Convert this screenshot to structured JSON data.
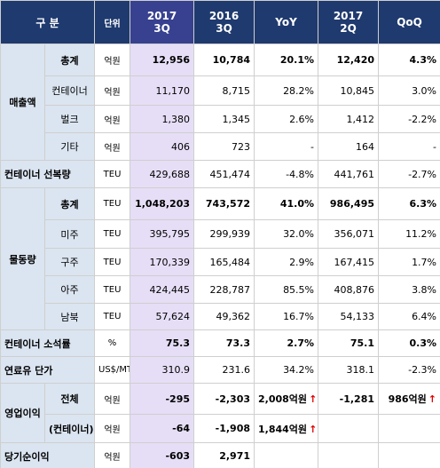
{
  "header": {
    "category": "구 분",
    "unit": "단위",
    "columns": [
      [
        "2017",
        "3Q"
      ],
      [
        "2016",
        "3Q"
      ],
      [
        "YoY"
      ],
      [
        "2017",
        "2Q"
      ],
      [
        "QoQ"
      ]
    ]
  },
  "sections": [
    {
      "label": "매출액",
      "rows": [
        {
          "item": "총계",
          "unit": "억원",
          "values": [
            "12,956",
            "10,784",
            "20.1%",
            "12,420",
            "4.3%"
          ]
        },
        {
          "item": "컨테이너",
          "unit": "억원",
          "values": [
            "11,170",
            "8,715",
            "28.2%",
            "10,845",
            "3.0%"
          ]
        },
        {
          "item": "벌크",
          "unit": "억원",
          "values": [
            "1,380",
            "1,345",
            "2.6%",
            "1,412",
            "-2.2%"
          ]
        },
        {
          "item": "기타",
          "unit": "억원",
          "values": [
            "406",
            "723",
            "-",
            "164",
            "-"
          ]
        }
      ]
    },
    {
      "rows": [
        {
          "item": "컨테이너 선복량",
          "unit": "TEU",
          "values": [
            "429,688",
            "451,474",
            "-4.8%",
            "441,761",
            "-2.7%"
          ]
        }
      ]
    },
    {
      "label": "물동량",
      "rows": [
        {
          "item": "총계",
          "unit": "TEU",
          "values": [
            "1,048,203",
            "743,572",
            "41.0%",
            "986,495",
            "6.3%"
          ]
        },
        {
          "item": "미주",
          "unit": "TEU",
          "values": [
            "395,795",
            "299,939",
            "32.0%",
            "356,071",
            "11.2%"
          ]
        },
        {
          "item": "구주",
          "unit": "TEU",
          "values": [
            "170,339",
            "165,484",
            "2.9%",
            "167,415",
            "1.7%"
          ]
        },
        {
          "item": "아주",
          "unit": "TEU",
          "values": [
            "424,445",
            "228,787",
            "85.5%",
            "408,876",
            "3.8%"
          ]
        },
        {
          "item": "남북",
          "unit": "TEU",
          "values": [
            "57,624",
            "49,362",
            "16.7%",
            "54,133",
            "6.4%"
          ]
        }
      ]
    },
    {
      "rows": [
        {
          "item": "컨테이너 소석률",
          "unit": "%",
          "values": [
            "75.3",
            "73.3",
            "2.7%",
            "75.1",
            "0.3%"
          ]
        }
      ]
    },
    {
      "rows": [
        {
          "item": "연료유 단가",
          "unit": "US$/MT",
          "values": [
            "310.9",
            "231.6",
            "34.2%",
            "318.1",
            "-2.3%"
          ]
        }
      ]
    },
    {
      "label": "영업이익",
      "rows": [
        {
          "item": "전체",
          "unit": "억원",
          "values": [
            "-295",
            "-2,303",
            {
              "text": "2,008억원",
              "mark": "↑"
            },
            "-1,281",
            {
              "text": "986억원",
              "mark": "↑"
            }
          ]
        },
        {
          "item": "(컨테이너)",
          "unit": "억원",
          "values": [
            "-64",
            "-1,908",
            {
              "text": "1,844억원",
              "mark": "↑"
            },
            null,
            null
          ]
        }
      ]
    },
    {
      "rows": [
        {
          "item": "당기순이익",
          "unit": "억원",
          "values": [
            "-603",
            "2,971",
            null,
            null,
            null
          ]
        }
      ]
    }
  ]
}
